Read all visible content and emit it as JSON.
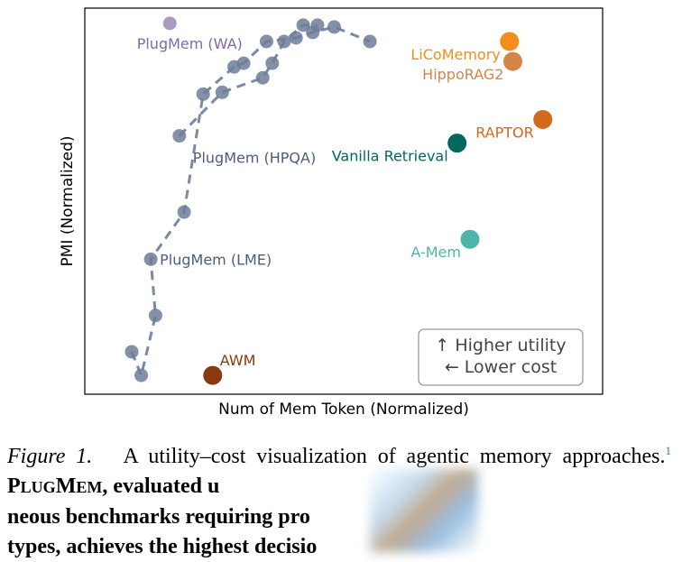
{
  "chart_data": {
    "type": "scatter",
    "xlabel": "Num of Mem Token (Normalized)",
    "ylabel": "PMI (Normalized)",
    "xlim": [
      0,
      1
    ],
    "ylim": [
      0,
      1
    ],
    "grid": false,
    "series": [
      {
        "name": "PlugMem (LME)",
        "kind": "dashed-line",
        "points": [
          [
            0.055,
            0.085
          ],
          [
            0.075,
            0.02
          ],
          [
            0.105,
            0.185
          ],
          [
            0.095,
            0.34
          ],
          [
            0.165,
            0.47
          ],
          [
            0.205,
            0.795
          ],
          [
            0.27,
            0.87
          ],
          [
            0.29,
            0.88
          ],
          [
            0.338,
            0.94
          ],
          [
            0.4,
            0.95
          ],
          [
            0.435,
            0.965
          ],
          [
            0.48,
            0.98
          ],
          [
            0.555,
            0.94
          ]
        ],
        "label_pos": "lower-left"
      },
      {
        "name": "PlugMem (HPQA)",
        "kind": "dashed-line",
        "points": [
          [
            0.155,
            0.68
          ],
          [
            0.245,
            0.8
          ],
          [
            0.33,
            0.84
          ],
          [
            0.35,
            0.88
          ],
          [
            0.375,
            0.94
          ],
          [
            0.415,
            0.985
          ],
          [
            0.445,
            0.985
          ]
        ],
        "label_pos": "upper-left"
      },
      {
        "name": "PlugMem (WA)",
        "kind": "point",
        "points": [
          [
            0.135,
            0.99
          ]
        ],
        "label_pos": "below"
      }
    ],
    "methods": [
      {
        "name": "LiCoMemory",
        "x": 0.848,
        "y": 0.94,
        "color": "#f28e1c"
      },
      {
        "name": "HippoRAG2",
        "x": 0.855,
        "y": 0.885,
        "color": "#d4864a"
      },
      {
        "name": "RAPTOR",
        "x": 0.918,
        "y": 0.725,
        "color": "#d2691e"
      },
      {
        "name": "Vanilla Retrieval",
        "x": 0.738,
        "y": 0.66,
        "color": "#00695c"
      },
      {
        "name": "A-Mem",
        "x": 0.765,
        "y": 0.395,
        "color": "#4db6ac"
      },
      {
        "name": "AWM",
        "x": 0.225,
        "y": 0.02,
        "color": "#8b3a0f"
      }
    ],
    "annotation": {
      "line1": "↑ Higher utility",
      "line2": "← Lower cost"
    },
    "line_color": "#6c7d99"
  },
  "caption": {
    "figure_label": "Figure 1.",
    "text_1": "A utility–cost visualization of agentic memory approaches.",
    "footnote": "1",
    "bold_1_smallcaps_P": "P",
    "bold_1_smallcaps_LUG": "LUG",
    "bold_1_smallcaps_M": "M",
    "bold_1_smallcaps_EM": "EM",
    "bold_2": ", evaluated u",
    "bold_3": "neous benchmarks requiring pro",
    "bold_4": "types, achieves the highest decisio"
  }
}
